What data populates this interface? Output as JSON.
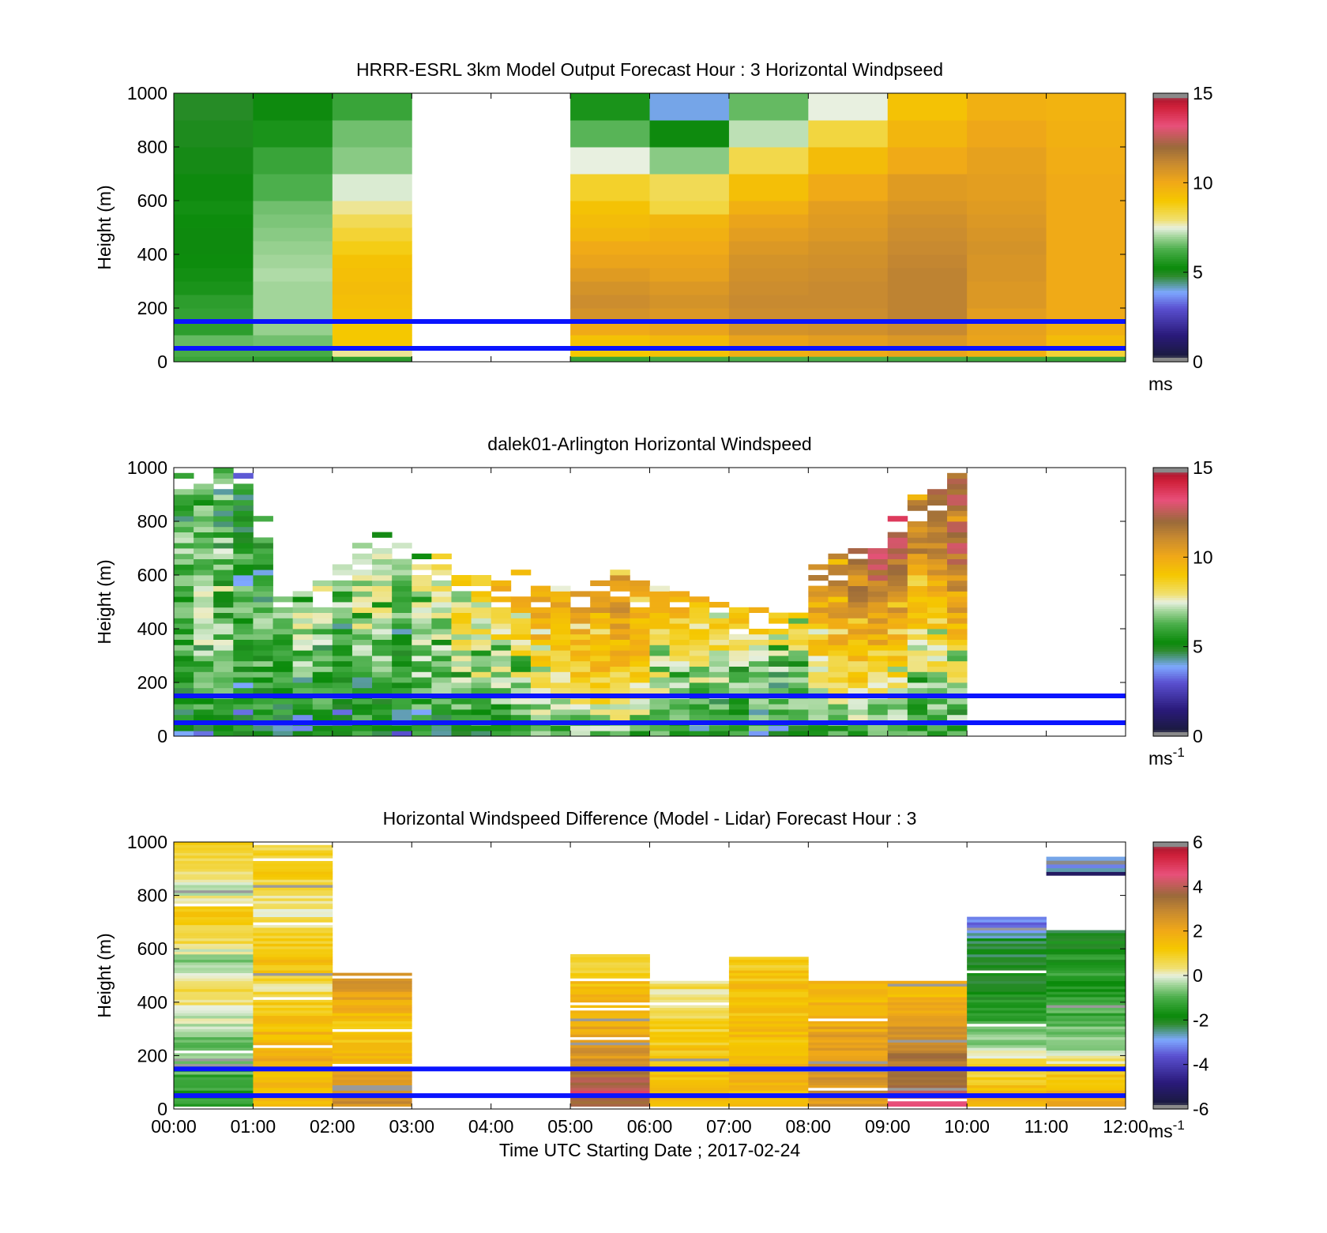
{
  "colors": {
    "windspeed_scale": [
      [
        0.0,
        "#8a8a8a"
      ],
      [
        0.02,
        "#8a8a8a"
      ],
      [
        0.021,
        "#1a1a3e"
      ],
      [
        0.1,
        "#2a1a7a"
      ],
      [
        0.2,
        "#5a50d0"
      ],
      [
        0.26,
        "#7ea8ff"
      ],
      [
        0.32,
        "#2e8b2e"
      ],
      [
        0.35,
        "#0a8a0a"
      ],
      [
        0.42,
        "#4caf4c"
      ],
      [
        0.47,
        "#a8d8a0"
      ],
      [
        0.5,
        "#e8f0e0"
      ],
      [
        0.53,
        "#f0e070"
      ],
      [
        0.6,
        "#f5c800"
      ],
      [
        0.67,
        "#f0a818"
      ],
      [
        0.74,
        "#c88a30"
      ],
      [
        0.8,
        "#9a6a3a"
      ],
      [
        0.88,
        "#e8507a"
      ],
      [
        0.95,
        "#d0203a"
      ],
      [
        0.979,
        "#b01830"
      ],
      [
        0.98,
        "#8a8a8a"
      ],
      [
        1.0,
        "#8a8a8a"
      ]
    ],
    "guide_line": "#0a14ff"
  },
  "chart_data": [
    {
      "type": "heatmap",
      "id": "model",
      "title": "HRRR-ESRL 3km Model Output   Forecast Hour : 3 Horizontal Windpseed",
      "ylabel": "Height (m)",
      "xlim": [
        0,
        12
      ],
      "ylim": [
        0,
        1000
      ],
      "yticks": [
        0,
        200,
        400,
        600,
        800,
        1000
      ],
      "clim": [
        0,
        15
      ],
      "cticks": [
        0,
        5,
        10,
        15
      ],
      "cunit": "ms",
      "cunit_sup": "",
      "guide_lines": [
        150,
        50
      ],
      "hours": [
        0,
        1,
        2,
        5,
        6,
        7,
        8,
        9,
        10,
        11
      ],
      "height_edges": [
        0,
        20,
        50,
        100,
        150,
        200,
        250,
        300,
        350,
        400,
        450,
        500,
        550,
        600,
        700,
        800,
        900,
        1000
      ],
      "values": [
        [
          6,
          6.2,
          6.5,
          5.8,
          5.9,
          5.8,
          5.5,
          5.4,
          5.3,
          5.2,
          5.2,
          5.3,
          5.4,
          5.2,
          5.1,
          5.0,
          4.9
        ],
        [
          5.8,
          6.2,
          6.6,
          6.9,
          7.0,
          7.0,
          7.0,
          7.1,
          7.0,
          6.9,
          6.8,
          6.7,
          6.6,
          6.3,
          6.0,
          5.5,
          5.2
        ],
        [
          5.8,
          7.8,
          9.0,
          9.0,
          9.2,
          9.3,
          9.4,
          9.3,
          9.2,
          8.8,
          8.5,
          8.2,
          7.8,
          7.4,
          6.8,
          6.6,
          6.0
        ],
        [
          6.0,
          9.0,
          9.2,
          10.0,
          10.8,
          11.0,
          10.8,
          10.5,
          10.2,
          10.0,
          9.6,
          9.4,
          9.2,
          8.6,
          7.5,
          6.4,
          5.5
        ],
        [
          6.2,
          9.2,
          9.5,
          10.2,
          10.6,
          10.8,
          10.6,
          10.3,
          10.2,
          10.0,
          9.8,
          9.6,
          8.4,
          8.2,
          6.8,
          5.2,
          4.0
        ],
        [
          6.3,
          9.8,
          10.2,
          10.8,
          11.0,
          11.1,
          11.0,
          10.9,
          10.8,
          10.6,
          10.4,
          10.2,
          9.8,
          9.3,
          8.3,
          7.2,
          6.5
        ],
        [
          6.3,
          10.0,
          10.4,
          10.9,
          11.0,
          11.1,
          11.1,
          11.0,
          10.9,
          10.8,
          10.6,
          10.5,
          10.4,
          10.0,
          9.4,
          8.4,
          7.5
        ],
        [
          6.2,
          10.2,
          10.6,
          11.1,
          11.3,
          11.3,
          11.3,
          11.3,
          11.2,
          11.1,
          11.0,
          10.9,
          10.7,
          10.5,
          10.0,
          9.6,
          9.2
        ],
        [
          6.1,
          9.8,
          10.2,
          10.3,
          10.4,
          10.6,
          10.6,
          10.7,
          10.7,
          10.8,
          10.7,
          10.6,
          10.5,
          10.4,
          10.3,
          10.1,
          9.8
        ],
        [
          6.0,
          8.5,
          9.4,
          9.8,
          10.0,
          10.0,
          10.0,
          10.0,
          10.0,
          10.0,
          10.0,
          10.0,
          10.0,
          10.0,
          9.9,
          9.8,
          9.7
        ]
      ]
    },
    {
      "type": "heatmap",
      "id": "lidar",
      "title": "dalek01-Arlington  Horizontal Windspeed",
      "ylabel": "Height (m)",
      "xlim": [
        0,
        12
      ],
      "ylim": [
        0,
        1000
      ],
      "yticks": [
        0,
        200,
        400,
        600,
        800,
        1000
      ],
      "clim": [
        0,
        15
      ],
      "cticks": [
        0,
        5,
        10,
        15
      ],
      "cunit": "ms",
      "cunit_sup": "-1",
      "guide_lines": [
        150,
        50
      ],
      "x_start": 0,
      "x_step": 0.25,
      "top_heights": [
        1000,
        1000,
        1000,
        1000,
        820,
        520,
        560,
        580,
        660,
        720,
        760,
        720,
        700,
        680,
        600,
        600,
        580,
        620,
        580,
        560,
        540,
        600,
        620,
        580,
        560,
        540,
        520,
        500,
        480,
        500,
        480,
        460,
        640,
        680,
        700,
        720,
        860,
        900,
        920,
        980
      ],
      "profiles": [
        [
          5.0,
          6.0,
          6.2,
          6.5,
          5.8
        ],
        [
          5.4,
          6.6,
          7.0,
          6.4,
          5.8
        ],
        [
          5.6,
          6.7,
          7.1,
          6.6,
          6.0
        ],
        [
          5.0,
          6.1,
          6.0,
          5.6,
          5.0
        ],
        [
          5.2,
          6.0,
          6.4,
          5.4,
          5.0
        ],
        [
          5.0,
          6.2,
          6.6,
          6.2,
          5.6
        ],
        [
          5.4,
          6.5,
          7.2,
          6.8,
          6.0
        ],
        [
          5.2,
          6.4,
          7.3,
          6.8,
          6.2
        ],
        [
          5.0,
          6.0,
          6.6,
          6.4,
          6.0
        ],
        [
          5.4,
          6.6,
          7.2,
          7.0,
          6.4
        ],
        [
          5.2,
          6.4,
          7.4,
          7.0,
          6.6
        ],
        [
          5.0,
          5.8,
          6.4,
          6.5,
          6.2
        ],
        [
          5.4,
          6.8,
          7.5,
          7.2,
          6.6
        ],
        [
          5.2,
          6.8,
          7.6,
          7.8,
          7.0
        ],
        [
          5.4,
          7.2,
          8.6,
          8.8,
          8.0
        ],
        [
          5.6,
          7.4,
          8.2,
          8.5,
          8.0
        ],
        [
          5.8,
          7.0,
          9.4,
          9.0,
          8.4
        ],
        [
          6.0,
          7.6,
          9.6,
          9.6,
          9.4
        ],
        [
          6.2,
          8.8,
          9.8,
          9.4,
          9.2
        ],
        [
          6.0,
          8.6,
          9.6,
          9.2,
          8.8
        ],
        [
          6.4,
          9.2,
          10.0,
          9.6,
          9.0
        ],
        [
          6.6,
          9.6,
          10.2,
          10.0,
          9.4
        ],
        [
          6.4,
          9.4,
          10.4,
          10.0,
          9.2
        ],
        [
          6.2,
          9.2,
          10.0,
          9.6,
          9.2
        ],
        [
          6.0,
          8.0,
          9.6,
          9.4,
          9.0
        ],
        [
          6.2,
          7.6,
          9.6,
          9.2,
          9.0
        ],
        [
          6.0,
          7.2,
          9.2,
          9.4,
          9.0
        ],
        [
          5.8,
          7.4,
          9.6,
          9.4,
          9.2
        ],
        [
          5.8,
          7.0,
          9.4,
          9.2,
          9.0
        ],
        [
          5.8,
          7.0,
          9.6,
          9.4,
          9.0
        ],
        [
          5.6,
          6.8,
          9.2,
          9.0,
          8.8
        ],
        [
          5.8,
          7.0,
          9.0,
          9.2,
          9.0
        ],
        [
          6.2,
          8.0,
          10.6,
          11.2,
          11.2
        ],
        [
          6.0,
          8.4,
          11.0,
          11.4,
          11.4
        ],
        [
          6.4,
          9.0,
          11.2,
          11.6,
          11.0
        ],
        [
          6.0,
          8.6,
          11.2,
          13.2,
          12.2
        ],
        [
          6.6,
          8.8,
          10.8,
          13.0,
          12.0
        ],
        [
          5.8,
          7.4,
          9.8,
          11.6,
          11.4
        ],
        [
          6.0,
          7.8,
          9.4,
          12.0,
          11.2
        ],
        [
          6.2,
          8.0,
          10.4,
          12.4,
          11.4
        ]
      ]
    },
    {
      "type": "heatmap",
      "id": "diff",
      "title": "Horizontal Windspeed Difference (Model - Lidar) Forecast Hour : 3",
      "xlabel": "Time UTC  Starting Date ; 2017-02-24",
      "ylabel": "Height (m)",
      "xlim": [
        0,
        12
      ],
      "ylim": [
        0,
        1000
      ],
      "yticks": [
        0,
        200,
        400,
        600,
        800,
        1000
      ],
      "xticks": [
        "00:00",
        "01:00",
        "02:00",
        "03:00",
        "04:00",
        "05:00",
        "06:00",
        "07:00",
        "08:00",
        "09:00",
        "10:00",
        "11:00",
        "12:00"
      ],
      "clim": [
        -6,
        6
      ],
      "cticks": [
        -6,
        -4,
        -2,
        0,
        2,
        4,
        6
      ],
      "cunit": "ms",
      "cunit_sup": "-1",
      "guide_lines": [
        150,
        50
      ],
      "blocks": [
        {
          "hour": 0,
          "top": 1000,
          "bottom_val": -1.5,
          "top_val": -0.6,
          "pattern": [
            -1.4,
            -1.2,
            -0.8,
            -0.5,
            0.2,
            0.6,
            -0.6,
            0.8,
            1.2,
            -0.4,
            0.6,
            1.4
          ]
        },
        {
          "hour": 1,
          "top": 1000,
          "bottom_val": 1.2,
          "top_val": 0.6,
          "pattern": [
            1.4,
            1.6,
            1.8,
            1.6,
            1.2,
            0.4,
            1.6,
            0.8,
            0.2,
            0.6,
            1.2,
            0.2
          ]
        },
        {
          "hour": 2,
          "top": 505,
          "bottom_val": 2.4,
          "top_val": 2.2,
          "pattern": [
            2.8,
            2.6,
            2.2,
            1.6,
            1.4,
            1.2,
            1.4,
            2.0,
            2.6,
            3.0
          ]
        },
        {
          "hour": 5,
          "top": 575,
          "bottom_val": 3.2,
          "top_val": 0.6,
          "pattern": [
            3.4,
            4.6,
            3.6,
            2.8,
            2.4,
            2.2,
            2.0,
            1.8,
            1.6,
            1.4,
            0.6,
            0.9
          ]
        },
        {
          "hour": 6,
          "top": 480,
          "bottom_val": 1.4,
          "top_val": 0.6,
          "pattern": [
            1.4,
            1.5,
            1.4,
            1.3,
            1.2,
            1.0,
            0.8,
            0.6,
            0.5,
            0.6
          ]
        },
        {
          "hour": 7,
          "top": 570,
          "bottom_val": 1.6,
          "top_val": 1.2,
          "pattern": [
            1.6,
            1.6,
            1.6,
            1.5,
            1.4,
            1.4,
            1.3,
            1.3,
            1.4,
            1.2,
            0.8
          ]
        },
        {
          "hour": 8,
          "top": 480,
          "bottom_val": 2.4,
          "top_val": 2.0,
          "pattern": [
            2.4,
            2.6,
            2.6,
            2.4,
            2.2,
            2.2,
            2.0,
            1.8,
            1.6,
            1.8
          ]
        },
        {
          "hour": 9,
          "top": 480,
          "bottom_val": 3.6,
          "top_val": 1.8,
          "pattern": [
            4.2,
            3.8,
            3.6,
            3.4,
            3.2,
            2.8,
            2.4,
            2.0,
            1.6,
            1.8
          ]
        },
        {
          "hour": 10,
          "top": 720,
          "bottom_val": 1.6,
          "top_val": -2.4,
          "pattern": [
            2.0,
            1.4,
            0.8,
            0.6,
            -0.2,
            -1.0,
            -1.2,
            -1.6,
            -1.8,
            -2.0,
            -2.2,
            -1.8,
            -3.0,
            -3.4
          ]
        },
        {
          "hour": 11,
          "top": 670,
          "bottom_val": 2.0,
          "top_val": -1.4,
          "pattern": [
            2.2,
            1.6,
            1.2,
            0.4,
            -0.4,
            -0.8,
            -1.0,
            -1.2,
            -1.4,
            -1.4,
            -1.6,
            -1.8,
            -2.0
          ]
        }
      ],
      "extra_block": {
        "hour": 11,
        "bottom": 875,
        "top": 945,
        "pattern": [
          -5.2,
          -2.6,
          -3.2,
          -6.0,
          -2.8
        ]
      }
    }
  ]
}
